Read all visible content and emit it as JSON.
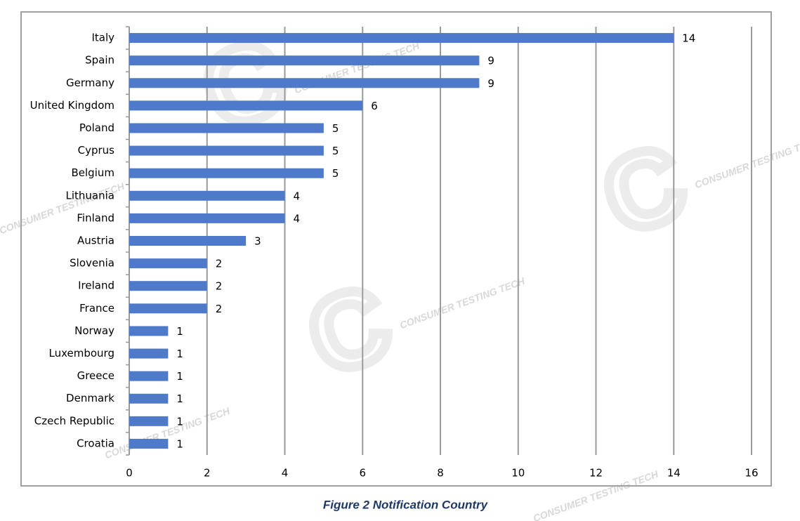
{
  "chart_data": {
    "type": "bar",
    "orientation": "horizontal",
    "caption": "Figure 2 Notification Country",
    "watermark": "CONSUMER TESTING TECH",
    "categories": [
      "Italy",
      "Spain",
      "Germany",
      "United Kingdom",
      "Poland",
      "Cyprus",
      "Belgium",
      "Lithuania",
      "Finland",
      "Austria",
      "Slovenia",
      "Ireland",
      "France",
      "Norway",
      "Luxembourg",
      "Greece",
      "Denmark",
      "Czech Republic",
      "Croatia"
    ],
    "values": [
      14,
      9,
      9,
      6,
      5,
      5,
      5,
      4,
      4,
      3,
      2,
      2,
      2,
      1,
      1,
      1,
      1,
      1,
      1
    ],
    "color": "#4f79c9",
    "xlim": [
      0,
      16
    ],
    "xticks": [
      0,
      2,
      4,
      6,
      8,
      10,
      12,
      14,
      16
    ],
    "grid": true
  }
}
